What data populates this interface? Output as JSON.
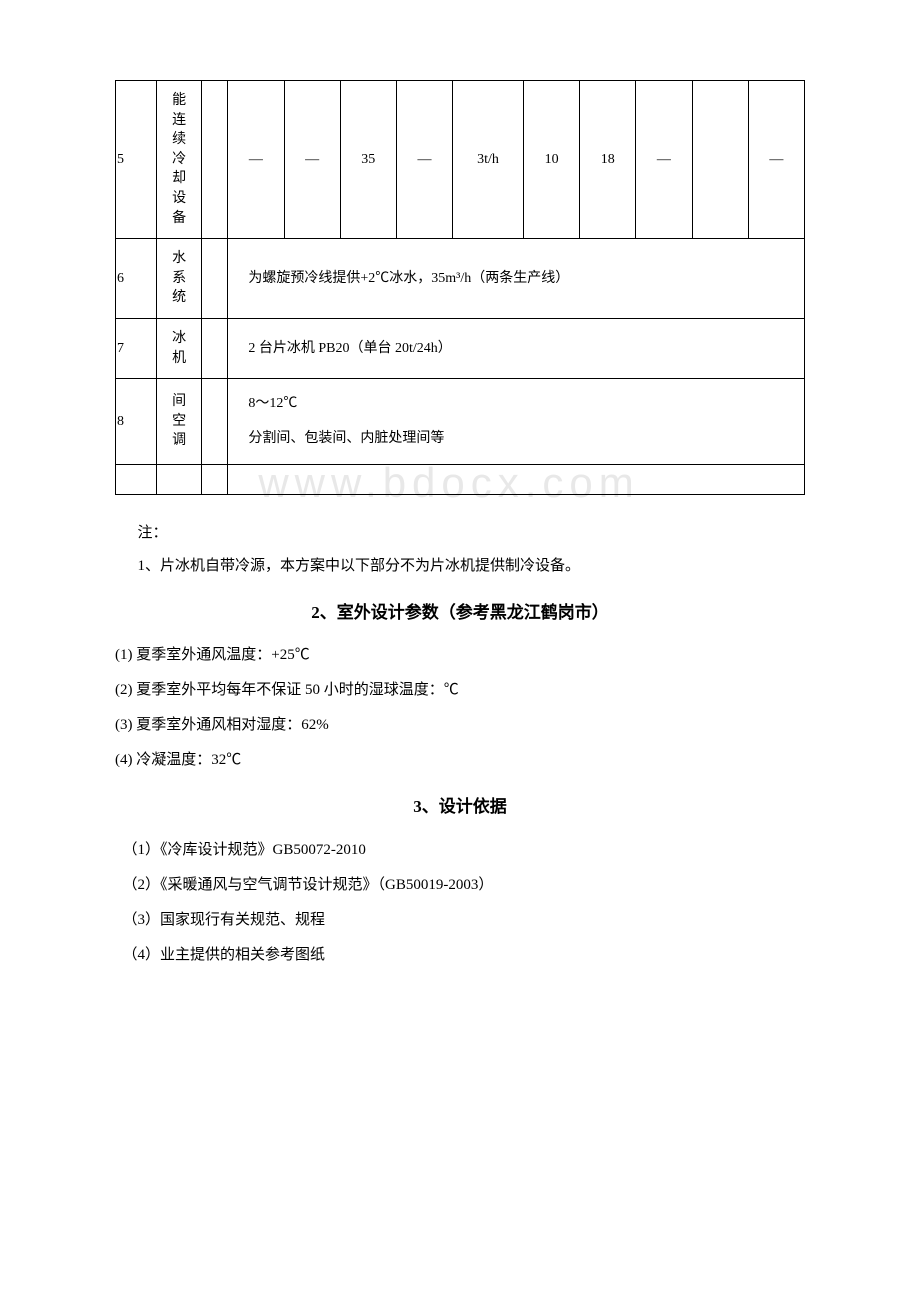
{
  "table": {
    "rows": [
      {
        "num": "5",
        "name": "能连续冷却设备",
        "cells": [
          "—",
          "—",
          "35",
          "—",
          "3t/h",
          "10",
          "18",
          "—",
          "",
          "—"
        ]
      },
      {
        "num": "6",
        "name": "水系统",
        "merged": "为螺旋预冷线提供+2℃冰水，35m³/h（两条生产线）"
      },
      {
        "num": "7",
        "name": "冰机",
        "merged": "2 台片冰机 PB20（单台 20t/24h）"
      },
      {
        "num": "8",
        "name": "间空调",
        "merged_lines": [
          "8～12℃",
          "分割间、包装间、内脏处理间等"
        ]
      }
    ],
    "empty_row_cols": 3
  },
  "notes": {
    "label": "注：",
    "items": [
      "1、片冰机自带冷源，本方案中以下部分不为片冰机提供制冷设备。"
    ]
  },
  "section2": {
    "title": "2、室外设计参数（参考黑龙江鹤岗市）",
    "params": [
      "(1) 夏季室外通风温度：+25℃",
      "(2) 夏季室外平均每年不保证 50 小时的湿球温度：℃",
      "(3) 夏季室外通风相对湿度：62%",
      "(4) 冷凝温度：32℃"
    ]
  },
  "section3": {
    "title": "3、设计依据",
    "params": [
      "（1）《冷库设计规范》GB50072-2010",
      "（2）《采暖通风与空气调节设计规范》（GB50019-2003）",
      "（3）国家现行有关规范、规程",
      "（4）业主提供的相关参考图纸"
    ]
  },
  "watermark": "www.bdocx.com"
}
